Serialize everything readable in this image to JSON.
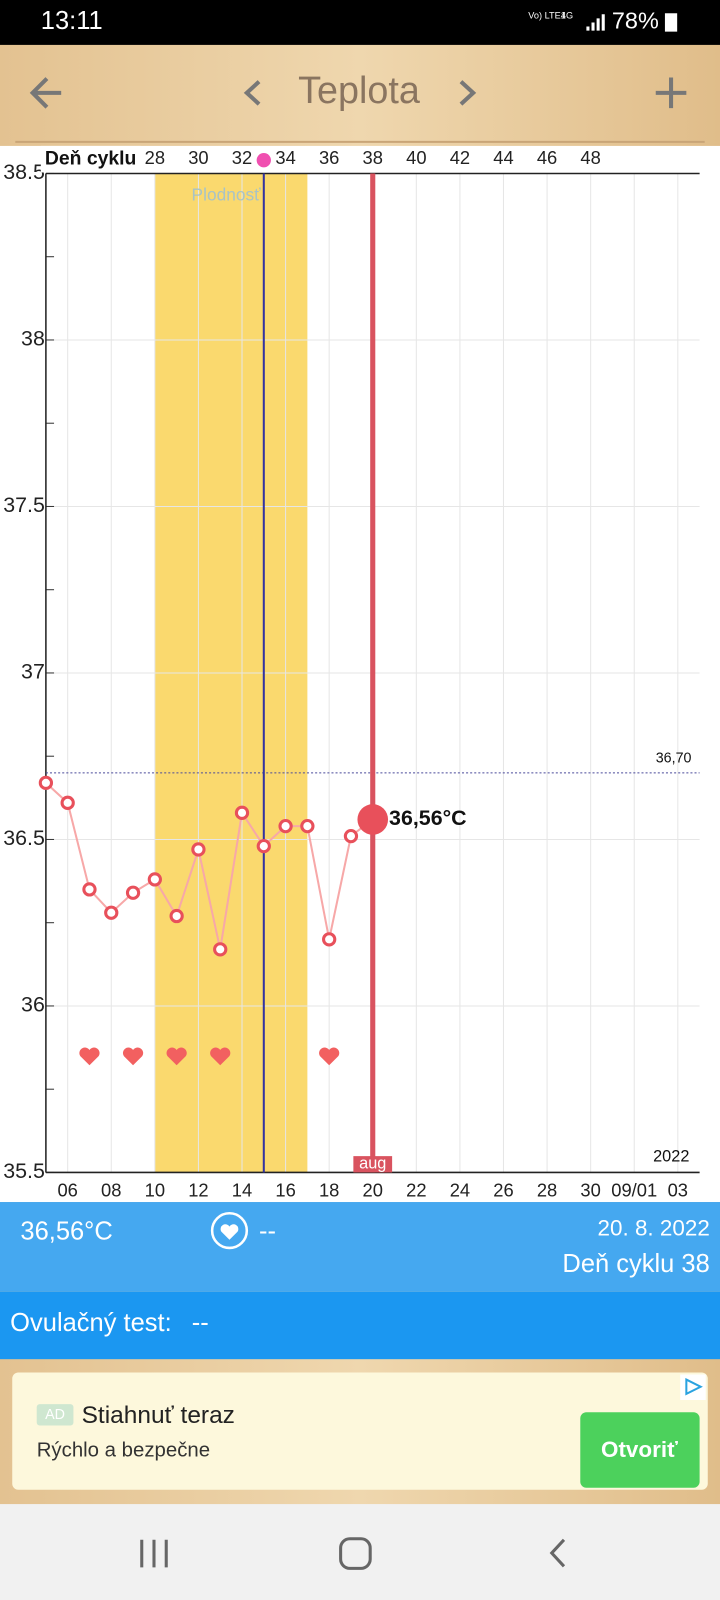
{
  "status_bar": {
    "time": "13:11",
    "network": "Vo) LTE1",
    "network_type": "4G",
    "battery": "78%"
  },
  "header": {
    "title": "Teplota"
  },
  "chart_data": {
    "type": "line",
    "x_axis_label": "Deň cyklu",
    "x": [
      23,
      24,
      25,
      26,
      27,
      28,
      29,
      30,
      31,
      32,
      33,
      34,
      35,
      36,
      37,
      38
    ],
    "values": [
      36.67,
      36.61,
      36.35,
      36.28,
      36.34,
      36.38,
      36.27,
      36.47,
      36.17,
      36.58,
      36.48,
      36.54,
      36.54,
      36.2,
      36.51,
      36.56
    ],
    "color": "#e8505b",
    "line_color": "#f7a8a8",
    "xlim": [
      23,
      53
    ],
    "xticks": [
      28,
      30,
      32,
      34,
      36,
      38,
      40,
      42,
      44,
      46,
      48
    ],
    "x2ticks": [
      {
        "value": 24,
        "label": "06"
      },
      {
        "value": 26,
        "label": "08"
      },
      {
        "value": 28,
        "label": "10"
      },
      {
        "value": 30,
        "label": "12"
      },
      {
        "value": 32,
        "label": "14"
      },
      {
        "value": 34,
        "label": "16"
      },
      {
        "value": 36,
        "label": "18"
      },
      {
        "value": 38,
        "label": "20"
      },
      {
        "value": 40,
        "label": "22"
      },
      {
        "value": 42,
        "label": "24"
      },
      {
        "value": 44,
        "label": "26"
      },
      {
        "value": 46,
        "label": "28"
      },
      {
        "value": 48,
        "label": "30"
      },
      {
        "value": 50,
        "label": "09/01"
      },
      {
        "value": 52,
        "label": "03"
      }
    ],
    "ylim": [
      35.5,
      38.5
    ],
    "yticks": [
      35.5,
      36,
      36.5,
      37,
      37.5,
      38,
      38.5
    ],
    "yminorticks": [
      35.75,
      36.25,
      36.75,
      37.25,
      37.75,
      38.25
    ],
    "grid": true,
    "fertile_window": {
      "start": 28,
      "end": 35,
      "label": "Plodnosť",
      "color": "#fad96e"
    },
    "ovulation_day": 33,
    "reference_line": {
      "value": 36.7,
      "label": "36,70"
    },
    "current": {
      "x": 38,
      "value": 36.56,
      "label": "36,56°C",
      "month_label": "aug"
    },
    "intercourse_days": [
      25,
      27,
      29,
      31,
      36
    ],
    "year_label": "2022"
  },
  "info": {
    "temperature": "36,56°C",
    "intercourse": "--",
    "date": "20. 8. 2022",
    "cycle_day": "Deň cyklu 38",
    "ovulation_test_label": "Ovulačný test:",
    "ovulation_test_value": "--"
  },
  "ad": {
    "badge": "AD",
    "title": "Stiahnuť teraz",
    "subtitle": "Rýchlo a bezpečne",
    "button": "Otvoriť"
  }
}
